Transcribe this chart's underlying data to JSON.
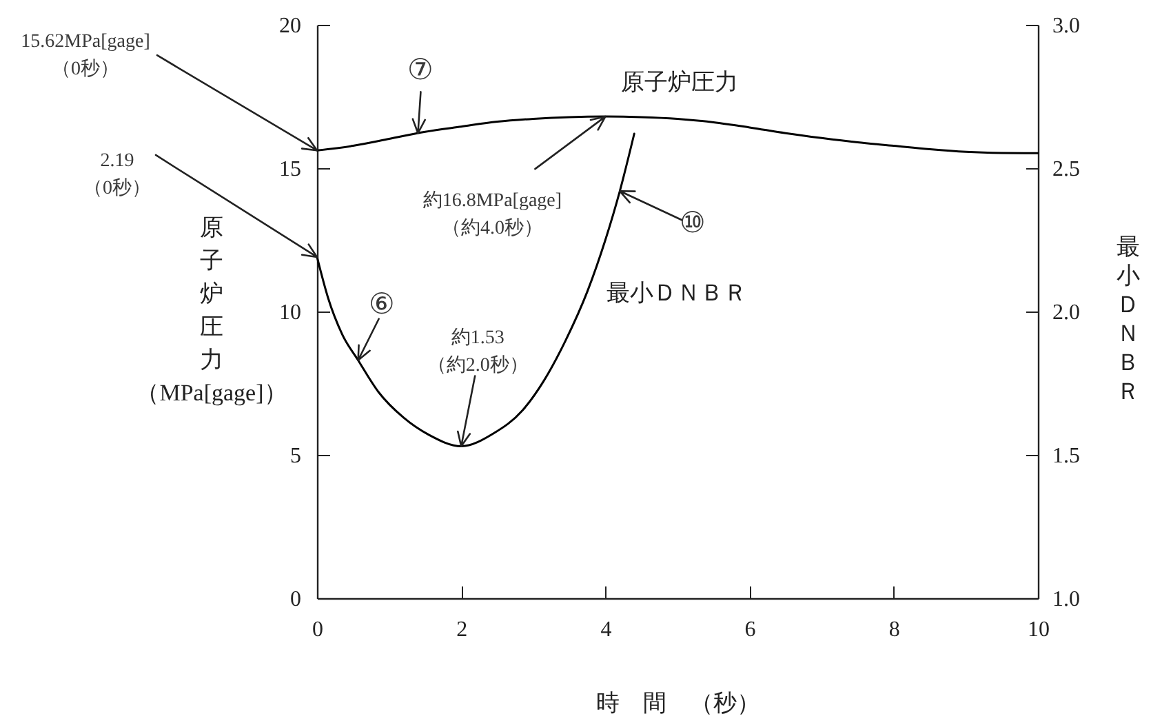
{
  "chart_data": {
    "type": "line",
    "xlabel": "時　間　（秒）",
    "ylabel": "原子炉圧力（MPa[gage]）",
    "y2label": "最小ＤＮＢＲ",
    "xlim": [
      0,
      10
    ],
    "xticks": [
      0,
      2,
      4,
      6,
      8,
      10
    ],
    "ylim": [
      0,
      20
    ],
    "yticks": [
      0,
      5,
      10,
      15,
      20
    ],
    "y2lim": [
      1,
      3
    ],
    "y2ticks": [
      {
        "value": 1,
        "label": "1.0"
      },
      {
        "value": 1.5,
        "label": "1.5"
      },
      {
        "value": 2,
        "label": "2.0"
      },
      {
        "value": 2.5,
        "label": "2.5"
      },
      {
        "value": 3,
        "label": "3.0"
      }
    ],
    "series": [
      {
        "name": "原子炉圧力",
        "color": "#000000",
        "x": [
          0,
          0.5,
          1,
          1.5,
          2,
          2.5,
          3,
          3.5,
          4,
          4.5,
          5,
          5.5,
          6,
          6.5,
          7,
          7.5,
          8,
          8.5,
          9,
          9.5,
          10
        ],
        "values": [
          15.62,
          15.78,
          16.02,
          16.27,
          16.45,
          16.62,
          16.72,
          16.78,
          16.8,
          16.78,
          16.72,
          16.6,
          16.42,
          16.22,
          16.05,
          15.9,
          15.78,
          15.66,
          15.57,
          15.53,
          15.52
        ]
      },
      {
        "name": "最小ＤＮＢＲ",
        "color": "#000000",
        "axis": "y2",
        "x": [
          0,
          0.15,
          0.35,
          0.57,
          0.85,
          1.2,
          1.55,
          2,
          2.45,
          2.85,
          3.15,
          3.45,
          3.75,
          4,
          4.2,
          4.4
        ],
        "values": [
          2.19,
          2.05,
          1.92,
          1.83,
          1.72,
          1.63,
          1.57,
          1.53,
          1.575,
          1.655,
          1.76,
          1.9,
          2.07,
          2.25,
          2.42,
          2.62
        ]
      }
    ],
    "annotations": [
      {
        "text": "15.62MPa[gage]\n（0秒）",
        "x": 0,
        "y": 15.62
      },
      {
        "text": "2.19\n（0秒）",
        "x": 0,
        "y": 11.9
      },
      {
        "text": "⑦",
        "x": 1.4,
        "y": 16.22
      },
      {
        "text": "約16.8MPa[gage]\n（約4.0秒）",
        "x": 4,
        "y": 16.8
      },
      {
        "text": "⑥",
        "x": 0.57,
        "y": 8.3
      },
      {
        "text": "約1.53\n（約2.0秒）",
        "x": 2,
        "y": 5.3
      },
      {
        "text": "⑩",
        "x": 4.2,
        "y": 14.2
      }
    ]
  }
}
